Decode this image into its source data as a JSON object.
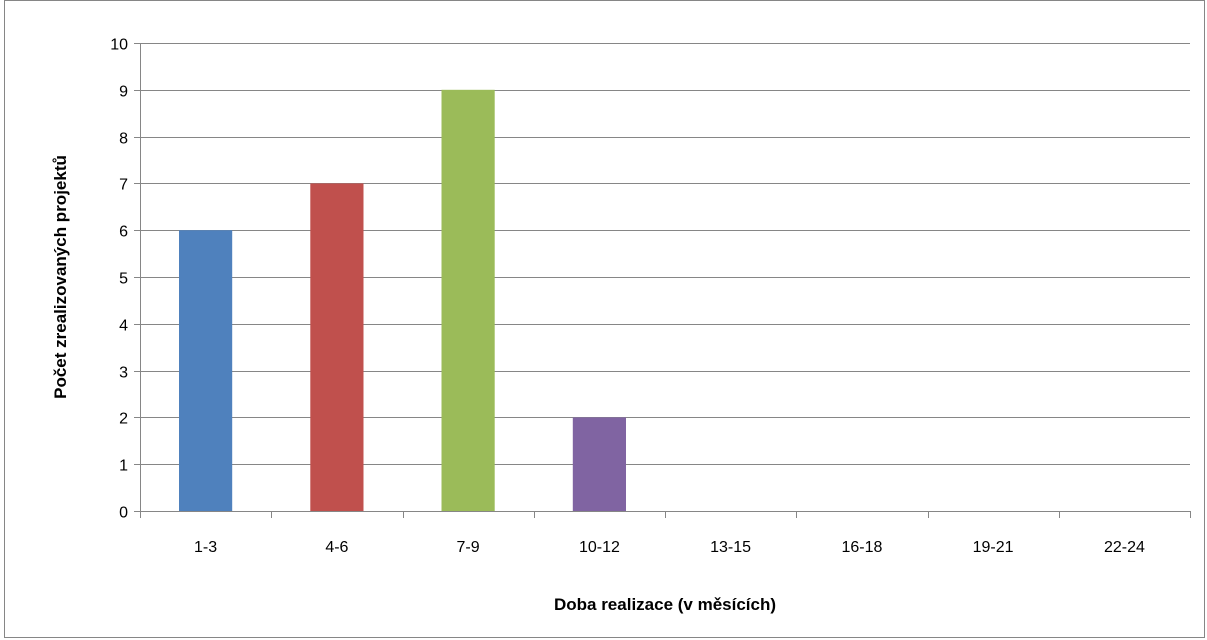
{
  "chart_data": {
    "type": "bar",
    "title": "",
    "xlabel": "Doba realizace (v měsících)",
    "ylabel": "Počet zrealizovaných projektů",
    "categories": [
      "1-3",
      "4-6",
      "7-9",
      "10-12",
      "13-15",
      "16-18",
      "19-21",
      "22-24"
    ],
    "values": [
      6,
      7,
      9,
      2,
      0,
      0,
      0,
      0
    ],
    "colors": [
      "#4f81bd",
      "#c0504d",
      "#9bbb59",
      "#8064a2",
      "#4bacc6",
      "#f79646",
      "#2c4d75",
      "#772c2a"
    ],
    "ylim": [
      0,
      10
    ],
    "yticks": [
      0,
      1,
      2,
      3,
      4,
      5,
      6,
      7,
      8,
      9,
      10
    ],
    "grid": true,
    "gridline_color": "#868686",
    "legend": "none"
  }
}
